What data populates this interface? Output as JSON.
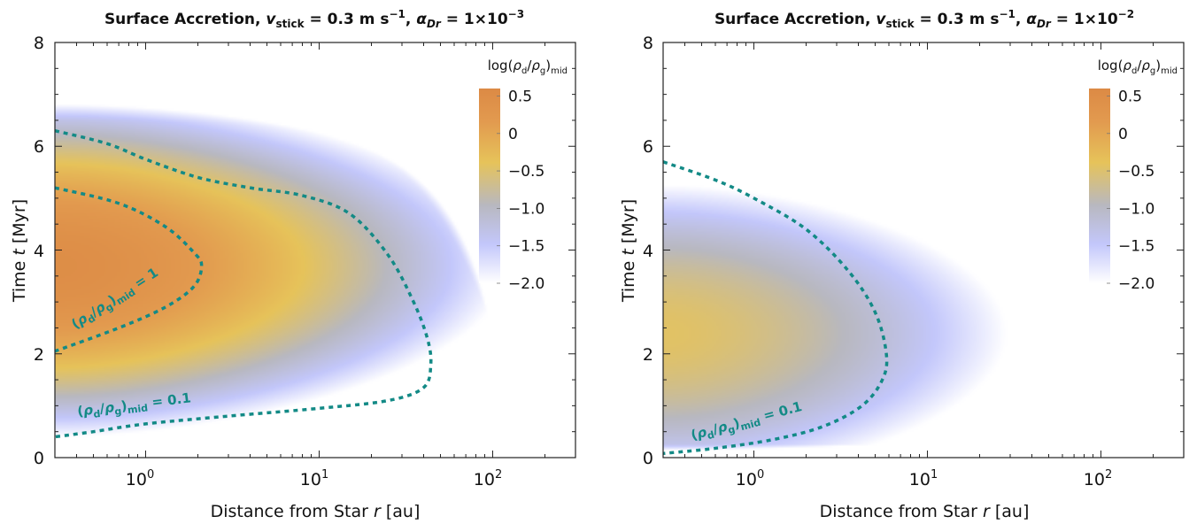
{
  "colors": {
    "contour": "#138a86",
    "cmap": [
      "#ffffff",
      "#c3c7fb",
      "#b8b8c0",
      "#e6c35a",
      "#e29a4f",
      "#dc8a45"
    ]
  },
  "chart_data": [
    {
      "type": "heatmap",
      "title": "Surface Accretion,  v_stick = 0.3 m s^-1,  α_Dr = 1×10^-3",
      "title_parts": {
        "lead": "Surface Accretion,  ",
        "v": "v",
        "v_sub": "stick",
        "v_val": " = 0.3 m s",
        "v_exp": "−1",
        "sep": ",  ",
        "a": "α",
        "a_sub": "Dr",
        "a_val": " = 1×10",
        "a_exp": "−3"
      },
      "xlabel": "Distance from Star  r [au]",
      "xlabel_parts": {
        "lead": "Distance from Star  ",
        "sym": "r",
        "unit": " [au]"
      },
      "ylabel": "Time  t [Myr]",
      "ylabel_parts": {
        "lead": "Time  ",
        "sym": "t",
        "unit": " [Myr]"
      },
      "xscale": "log",
      "xlim": [
        0.3,
        300
      ],
      "ylim": [
        0,
        8
      ],
      "xticks": [
        {
          "v": 1,
          "b": "10",
          "e": "0"
        },
        {
          "v": 10,
          "b": "10",
          "e": "1"
        },
        {
          "v": 100,
          "b": "10",
          "e": "2"
        }
      ],
      "yticks": [
        "0",
        "2",
        "4",
        "6",
        "8"
      ],
      "colorbar": {
        "label": "log(ρd/ρg)mid",
        "label_parts": {
          "lead": "log(",
          "r1": "ρ",
          "s1": "d",
          "sl": "/",
          "r2": "ρ",
          "s2": "g",
          "close": ")",
          "sub": "mid"
        },
        "range": [
          -2.0,
          0.6
        ],
        "ticks": [
          "0.5",
          "0",
          "−0.5",
          "−1.0",
          "−1.5",
          "−2.0"
        ],
        "tick_values": [
          0.5,
          0,
          -0.5,
          -1.0,
          -1.5,
          -2.0
        ],
        "position": "top-right"
      },
      "field": {
        "tmax_inner": 7.1,
        "r_c": 95,
        "peak": 0.5,
        "t_peak": 3.7,
        "width": 1.55,
        "cutoff": 190
      },
      "contours": [
        {
          "label": "(ρd/ρg)mid = 1",
          "level": 0,
          "points": [
            [
              0.3,
              5.2
            ],
            [
              0.7,
              4.9
            ],
            [
              1.3,
              4.45
            ],
            [
              1.9,
              3.95
            ],
            [
              2.1,
              3.7
            ],
            [
              1.9,
              3.3
            ],
            [
              1.3,
              2.9
            ],
            [
              0.7,
              2.5
            ],
            [
              0.3,
              2.05
            ]
          ]
        },
        {
          "label": "(ρd/ρg)mid = 0.1",
          "level": -1,
          "points": [
            [
              0.3,
              6.3
            ],
            [
              0.6,
              6.05
            ],
            [
              1.0,
              5.75
            ],
            [
              2.0,
              5.4
            ],
            [
              4.0,
              5.2
            ],
            [
              8.0,
              5.05
            ],
            [
              15,
              4.7
            ],
            [
              25,
              3.9
            ],
            [
              35,
              3.0
            ],
            [
              42,
              2.3
            ],
            [
              44,
              1.8
            ],
            [
              40,
              1.35
            ],
            [
              25,
              1.1
            ],
            [
              10,
              0.95
            ],
            [
              3,
              0.8
            ],
            [
              1.0,
              0.65
            ],
            [
              0.5,
              0.5
            ],
            [
              0.3,
              0.4
            ]
          ]
        }
      ],
      "contour_labels": [
        {
          "text": "(ρd/ρg)mid = 1",
          "r1": "ρ",
          "s1": "d",
          "r2": "ρ",
          "s2": "g",
          "sub": "mid",
          "tail": " = 1"
        },
        {
          "text": "(ρd/ρg)mid = 0.1",
          "r1": "ρ",
          "s1": "d",
          "r2": "ρ",
          "s2": "g",
          "sub": "mid",
          "tail": " = 0.1"
        }
      ]
    },
    {
      "type": "heatmap",
      "title": "Surface Accretion,  v_stick = 0.3 m s^-1,  α_Dr = 1×10^-2",
      "title_parts": {
        "lead": "Surface Accretion,  ",
        "v": "v",
        "v_sub": "stick",
        "v_val": " = 0.3 m s",
        "v_exp": "−1",
        "sep": ",  ",
        "a": "α",
        "a_sub": "Dr",
        "a_val": " = 1×10",
        "a_exp": "−2"
      },
      "xlabel": "Distance from Star  r [au]",
      "xlabel_parts": {
        "lead": "Distance from Star  ",
        "sym": "r",
        "unit": " [au]"
      },
      "ylabel": "Time  t [Myr]",
      "ylabel_parts": {
        "lead": "Time  ",
        "sym": "t",
        "unit": " [Myr]"
      },
      "xscale": "log",
      "xlim": [
        0.3,
        300
      ],
      "ylim": [
        0,
        8
      ],
      "xticks": [
        {
          "v": 1,
          "b": "10",
          "e": "0"
        },
        {
          "v": 10,
          "b": "10",
          "e": "1"
        },
        {
          "v": 100,
          "b": "10",
          "e": "2"
        }
      ],
      "yticks": [
        "0",
        "2",
        "4",
        "6",
        "8"
      ],
      "colorbar": {
        "label": "log(ρd/ρg)mid",
        "label_parts": {
          "lead": "log(",
          "r1": "ρ",
          "s1": "d",
          "sl": "/",
          "r2": "ρ",
          "s2": "g",
          "close": ")",
          "sub": "mid"
        },
        "range": [
          -2.0,
          0.6
        ],
        "ticks": [
          "0.5",
          "0",
          "−0.5",
          "−1.0",
          "−1.5",
          "−2.0"
        ],
        "tick_values": [
          0.5,
          0,
          -0.5,
          -1.0,
          -1.5,
          -2.0
        ],
        "position": "top-right"
      },
      "field": {
        "tmax_inner": 6.85,
        "r_c": 140,
        "peak": -0.45,
        "t_peak": 2.4,
        "width": 1.7,
        "cutoff": 1000
      },
      "contours": [
        {
          "label": "(ρd/ρg)mid = 0.1",
          "level": -1,
          "points": [
            [
              0.3,
              5.7
            ],
            [
              0.6,
              5.35
            ],
            [
              1.0,
              5.0
            ],
            [
              2.0,
              4.4
            ],
            [
              3.5,
              3.6
            ],
            [
              5.0,
              2.8
            ],
            [
              5.8,
              2.0
            ],
            [
              5.5,
              1.5
            ],
            [
              4.2,
              1.0
            ],
            [
              2.5,
              0.6
            ],
            [
              1.3,
              0.35
            ],
            [
              0.6,
              0.18
            ],
            [
              0.3,
              0.08
            ]
          ]
        }
      ],
      "contour_labels": [
        {
          "text": "(ρd/ρg)mid = 0.1",
          "r1": "ρ",
          "s1": "d",
          "r2": "ρ",
          "s2": "g",
          "sub": "mid",
          "tail": " = 0.1"
        }
      ]
    }
  ]
}
